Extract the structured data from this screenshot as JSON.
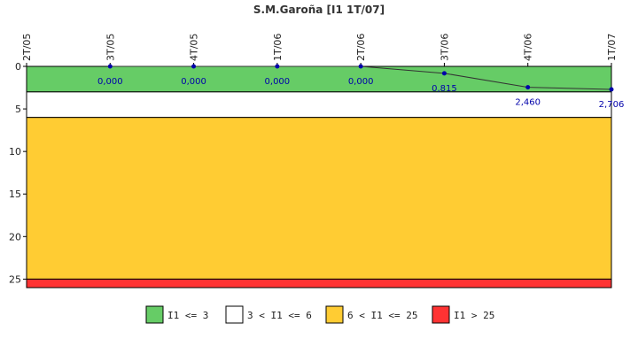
{
  "chart_data": {
    "type": "line",
    "title": "S.M.Garoña [I1 1T/07]",
    "x": [
      "2T/05",
      "3T/05",
      "4T/05",
      "1T/06",
      "2T/06",
      "3T/06",
      "4T/06",
      "1T/07"
    ],
    "series": [
      {
        "values": [
          null,
          0.0,
          0.0,
          0.0,
          0.0,
          0.815,
          2.46,
          2.706
        ],
        "labels": [
          "",
          "0,000",
          "0,000",
          "0,000",
          "0,000",
          "0,815",
          "2,460",
          "2,706"
        ],
        "color": "#333333",
        "marker_color": "#0000aa"
      }
    ],
    "yticks": [
      "0",
      "5",
      "10",
      "15",
      "20",
      "25"
    ],
    "ytick_values": [
      0,
      5,
      10,
      15,
      20,
      25
    ],
    "ylim": [
      0,
      26
    ],
    "y_inverted": true,
    "bands": [
      {
        "from": 0,
        "to": 3,
        "color": "#66cc66",
        "label": "I1 <= 3"
      },
      {
        "from": 3,
        "to": 6,
        "color": "#ffffff",
        "label": "3 < I1 <= 6"
      },
      {
        "from": 6,
        "to": 25,
        "color": "#ffcc33",
        "label": "6 < I1 <= 25"
      },
      {
        "from": 25,
        "to": 26,
        "color": "#ff3333",
        "label": "I1 > 25"
      }
    ],
    "legend": "bottom"
  }
}
